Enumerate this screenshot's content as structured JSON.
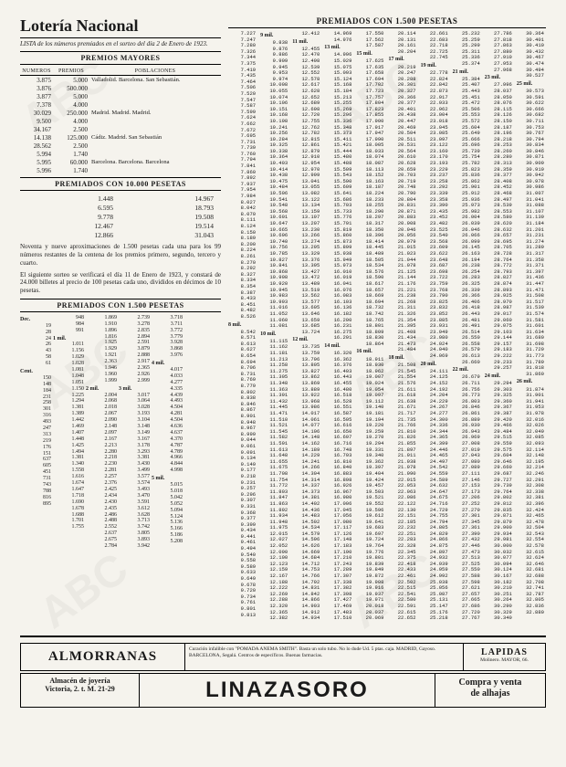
{
  "header": {
    "title": "Lotería Nacional",
    "subtitle": "LISTA de los números premiados en el sorteo del día 2 de Enero de 1923.",
    "premios_mayores": "PREMIOS MAYORES",
    "col_numeros": "NUMEROS",
    "col_premios": "PREMIOS",
    "col_poblaciones": "POBLACIONES"
  },
  "mayores": [
    {
      "num": "3.875",
      "premio": "5.000",
      "pob": "Valladolid. Barcelona. San Sebastián."
    },
    {
      "num": "3.876",
      "premio": "500.000",
      "pob": ""
    },
    {
      "num": "3.877",
      "premio": "5.000",
      "pob": ""
    },
    {
      "num": "7.378",
      "premio": "4.000",
      "pob": ""
    },
    {
      "num": "30.029",
      "premio": "250.000",
      "pob": "Madrid. Madrid. Madrid."
    },
    {
      "num": "9.500",
      "premio": "4.000",
      "pob": ""
    },
    {
      "num": "34.167",
      "premio": "2.500",
      "pob": ""
    },
    {
      "num": "14.138",
      "premio": "125.000",
      "pob": "Cádiz. Madrid. San Sebastián"
    },
    {
      "num": "28.562",
      "premio": "2.500",
      "pob": ""
    },
    {
      "num": "5.994",
      "premio": "1.740",
      "pob": ""
    },
    {
      "num": "5.995",
      "premio": "60.000",
      "pob": "Barcelona. Barcelona. Barcelona"
    },
    {
      "num": "5.996",
      "premio": "1.740",
      "pob": ""
    }
  ],
  "diez_mil": {
    "title": "PREMIADOS CON 10.000 PESETAS",
    "rows": [
      [
        "1.448",
        "14.967"
      ],
      [
        "6.595",
        "18.793"
      ],
      [
        "9.778",
        "19.508"
      ],
      [
        "12.467",
        "19.514"
      ],
      [
        "12.866",
        "31.043"
      ]
    ]
  },
  "notes": {
    "n1": "Noventa y nueve aproximaciones de 1.500 pesetas cada una para los 99 números restantes de la centena de los premios primero, segundo, tercero y cuarto.",
    "n2": "El siguiente sorteo se verificará el día 11 de Enero de 1923, y constará de 24.000 billetes al precio de 100 pesetas cada uno, divididos en décimos de 10 pesetas."
  },
  "mil500": {
    "title": "PREMIADOS CON 1.500 PESETAS",
    "labels": {
      "dec": "Dec.",
      "cent": "Cent.",
      "mil": "mil."
    },
    "cols": [
      [
        "Dec.",
        "19",
        "28",
        "",
        "24",
        "26",
        "43",
        "58",
        "61",
        "Cent.",
        "",
        "",
        "150",
        "148",
        "",
        "",
        "184",
        "231",
        "258",
        "301",
        "316",
        "493",
        "247",
        "",
        "313",
        "219",
        "176",
        "151",
        "",
        "637",
        "605",
        "451",
        "",
        "731",
        "743",
        "788",
        "816",
        "895"
      ],
      [
        "948",
        "984",
        "991",
        "1 mil.",
        "1.011",
        "1.156",
        "1.029",
        "1.028",
        "1.081",
        "1.048",
        "1.051",
        "1.150",
        "1.225",
        "",
        "",
        "1.294",
        "1.381",
        "1.389",
        "1.442",
        "1.469",
        "1.407",
        "1.448",
        "1.425",
        "1.494",
        "",
        "1.381",
        "1.340",
        "1.558",
        "1.616",
        "1.674",
        "1.647",
        "1.718",
        "1.690",
        "1.678",
        "1.688",
        "",
        "1.701",
        "1.755"
      ],
      [
        "1.869",
        "1.910",
        "1.896",
        "1.816",
        "",
        "1.925",
        "1.929",
        "1.921",
        "2.363",
        "1.946",
        "1.960",
        "1.999",
        "2 mil.",
        "2.004",
        "2.068",
        "2.018",
        "2.067",
        "2.090",
        "2.148",
        "2.097",
        "2.167",
        "2.213",
        "2.280",
        "2.218",
        "2.230",
        "2.281",
        "2.257",
        "2.376",
        "2.425",
        "2.434",
        "2.430",
        "2.435",
        "2.486",
        "2.488",
        "2.552",
        "2.637",
        "2.675",
        "2.784"
      ],
      [
        "2.739",
        "3.278",
        "2.835",
        "2.894",
        "2.591",
        "3.879",
        "2.888",
        "2.917",
        "2.365",
        "2.926",
        "2.999",
        "3 mil.",
        "3.017",
        "3.064",
        "3.028",
        "3.193",
        "3.104",
        "3.148",
        "3.149",
        "3.167",
        "3.178",
        "3.293",
        "3.381",
        "3.430",
        "3.499",
        "3.577",
        "",
        "3.574",
        "3.493",
        "3.470",
        "3.591",
        "3.612",
        "3.628",
        "3.713",
        "3.742",
        "3.805",
        "3.893",
        "3.942"
      ],
      [
        "3.718",
        "3.711",
        "3.772",
        "3.779",
        "",
        "3.928",
        "3.868",
        "3.976",
        "4 mil.",
        "4.017",
        "4.033",
        "4.277",
        "4.335",
        "4.439",
        "4.493",
        "4.504",
        "4.281",
        "4.504",
        "4.636",
        "4.637",
        "4.370",
        "4.787",
        "4.789",
        "4.966",
        "4.844",
        "4.998",
        "5 mil.",
        "5.015",
        "5.018",
        "5.042",
        "5.052",
        "",
        "5.094",
        "5.124",
        "5.136",
        "5.166",
        "5.186",
        "5.208"
      ]
    ]
  },
  "right": {
    "title": "PREMIADOS CON 1.500 PESETAS"
  },
  "ads": {
    "almorranas": {
      "title": "ALMORRANAS",
      "text": "Curación infalible con \"POMADA ANEMA SMITH\". Basta un solo tubo. No lo dude Ud. 5 ptas. caja. MADRID, Gayoso. BARCELONA, Segalá. Centros de específicos. Buenas farmacias."
    },
    "lapidas": {
      "title": "LAPIDAS",
      "sub": "Molinero. MAYOR, 66."
    },
    "joyeria": {
      "l1": "Almacén de joyería",
      "l2": "Victoria, 2. t. M. 21-29"
    },
    "linazasoro": "LINAZASORO",
    "alhajas": {
      "l1": "Compra y venta",
      "l2": "de alhajas"
    }
  },
  "watermark": "ABC"
}
